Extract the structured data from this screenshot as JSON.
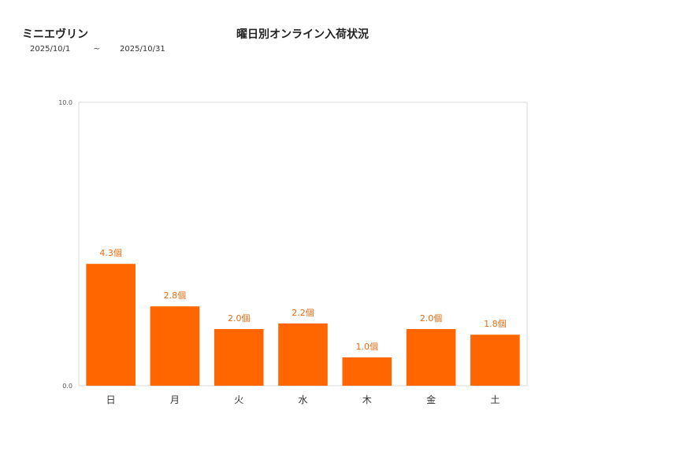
{
  "header": {
    "product_name": "ミニエヴリン",
    "date_from": "2025/10/1",
    "date_separator": "~",
    "date_to": "2025/10/31"
  },
  "chart_data": {
    "type": "bar",
    "title": "曜日別オンライン入荷状況",
    "categories": [
      "日",
      "月",
      "火",
      "水",
      "木",
      "金",
      "土"
    ],
    "values": [
      4.3,
      2.8,
      2.0,
      2.2,
      1.0,
      2.0,
      1.8
    ],
    "value_labels": [
      "4.3個",
      "2.8個",
      "2.0個",
      "2.2個",
      "1.0個",
      "2.0個",
      "1.8個"
    ],
    "ylim": [
      0,
      10
    ],
    "y_tick_labels": [
      "0.0",
      "10.0"
    ],
    "xlabel": "",
    "ylabel": "",
    "grid": false,
    "colors": {
      "bar": "#ff6600",
      "label": "#e86a10",
      "axis": "#d9d9d9"
    }
  }
}
